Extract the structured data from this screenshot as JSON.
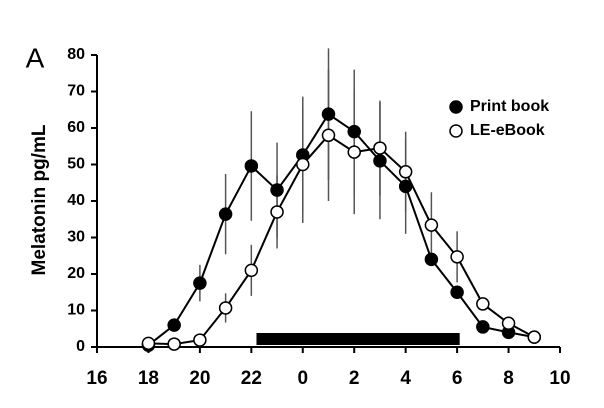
{
  "chart_data": {
    "type": "line",
    "panel_label": "A",
    "ylabel": "Melatonin pg/mL",
    "x": [
      18,
      19,
      20,
      21,
      22,
      23,
      24,
      25,
      26,
      27,
      28,
      29,
      30,
      31,
      32,
      33
    ],
    "series": [
      {
        "name": "Print book",
        "color": "#000000",
        "marker": "filled",
        "values": [
          0.5,
          6,
          17.5,
          36.4,
          49.6,
          43,
          52.6,
          63.8,
          59,
          51,
          44,
          24,
          15,
          5.5,
          4,
          2.7
        ],
        "errors": [
          null,
          null,
          5,
          11,
          15,
          13,
          16,
          18,
          17,
          16,
          13,
          null,
          null,
          null,
          null,
          null
        ]
      },
      {
        "name": "LE-eBook",
        "color": "#ffffff",
        "marker": "open",
        "values": [
          1,
          0.8,
          1.9,
          10.7,
          21,
          37,
          50,
          58,
          53.4,
          54.5,
          48,
          33.4,
          24.7,
          11.8,
          6.5,
          2.7
        ],
        "errors": [
          null,
          null,
          null,
          4,
          7,
          10,
          16,
          18,
          17,
          13,
          11,
          9,
          7,
          null,
          null,
          null
        ]
      }
    ],
    "dark_period": [
      22.2,
      30.1
    ],
    "xlim": [
      16,
      34
    ],
    "xticks": [
      16,
      18,
      20,
      22,
      {
        "value": 24,
        "label": "0"
      },
      {
        "value": 26,
        "label": "2"
      },
      {
        "value": 28,
        "label": "4"
      },
      {
        "value": 30,
        "label": "6"
      },
      {
        "value": 32,
        "label": "8"
      },
      {
        "value": 34,
        "label": "10"
      }
    ],
    "ylim": [
      0,
      80
    ],
    "yticks": [
      0,
      10,
      20,
      30,
      40,
      50,
      60,
      70,
      80
    ],
    "legend": "upper right",
    "grid": false
  }
}
